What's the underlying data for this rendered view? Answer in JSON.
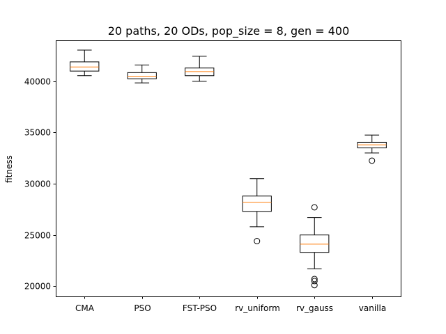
{
  "chart_data": {
    "type": "boxplot",
    "title": "20 paths, 20 ODs, pop_size = 8, gen = 400",
    "xlabel": "",
    "ylabel": "fitness",
    "ylim": [
      19000,
      44000
    ],
    "yticks": [
      20000,
      25000,
      30000,
      35000,
      40000
    ],
    "categories": [
      "CMA",
      "PSO",
      "FST-PSO",
      "rv_uniform",
      "rv_gauss",
      "vanilla"
    ],
    "boxes": [
      {
        "whislo": 40550,
        "q1": 41000,
        "median": 41400,
        "q3": 41900,
        "whishi": 43050,
        "fliers": []
      },
      {
        "whislo": 39850,
        "q1": 40250,
        "median": 40500,
        "q3": 40850,
        "whishi": 41600,
        "fliers": []
      },
      {
        "whislo": 40000,
        "q1": 40550,
        "median": 40950,
        "q3": 41300,
        "whishi": 42450,
        "fliers": []
      },
      {
        "whislo": 25800,
        "q1": 27300,
        "median": 28200,
        "q3": 28800,
        "whishi": 30500,
        "fliers": [
          24400
        ]
      },
      {
        "whislo": 21700,
        "q1": 23300,
        "median": 24100,
        "q3": 25000,
        "whishi": 26700,
        "fliers": [
          27700,
          20700,
          20500,
          20100
        ]
      },
      {
        "whislo": 33000,
        "q1": 33500,
        "median": 33800,
        "q3": 34050,
        "whishi": 34750,
        "fliers": [
          32250
        ]
      }
    ],
    "colors": {
      "box": "#000000",
      "median": "#ff7f0e",
      "flier": "#000000"
    },
    "grid": false
  }
}
